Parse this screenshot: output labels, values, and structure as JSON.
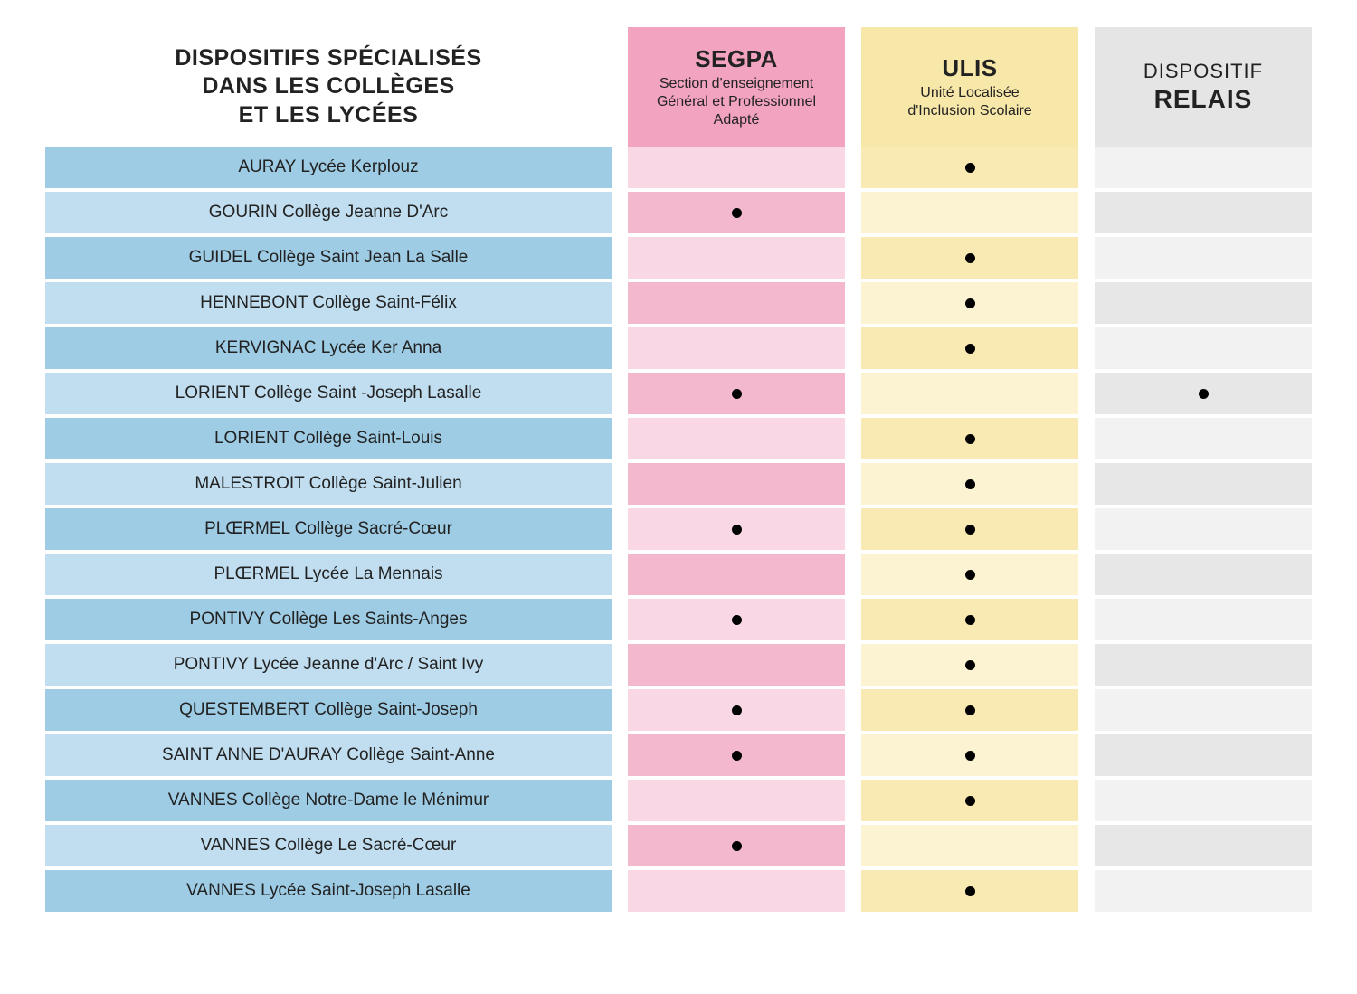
{
  "colors": {
    "header_main_bg": "#ffffff",
    "header_segpa_bg": "#f2a3bf",
    "header_ulis_bg": "#f7e7a8",
    "header_relais_bg": "#e5e5e5",
    "row_blue_dark": "#9ecce4",
    "row_blue_light": "#c1def0",
    "row_pink_dark": "#f4b8ce",
    "row_pink_light": "#fad7e4",
    "row_yellow_dark": "#f9eab3",
    "row_yellow_light": "#fcf3d2",
    "row_grey_dark": "#e7e7e7",
    "row_grey_light": "#f2f2f2"
  },
  "header": {
    "main": "DISPOSITIFS SPÉCIALISÉS\nDANS LES COLLÈGES\nET LES LYCÉES",
    "segpa_title": "SEGPA",
    "segpa_sub": "Section d'enseignement\nGénéral et Professionnel\nAdapté",
    "ulis_title": "ULIS",
    "ulis_sub": "Unité Localisée\nd'Inclusion Scolaire",
    "relais_title1": "DISPOSITIF",
    "relais_title2": "RELAIS"
  },
  "rows": [
    {
      "label": "AURAY Lycée Kerplouz",
      "segpa": false,
      "ulis": true,
      "relais": false
    },
    {
      "label": "GOURIN Collège Jeanne D'Arc",
      "segpa": true,
      "ulis": false,
      "relais": false
    },
    {
      "label": "GUIDEL Collège Saint Jean La Salle",
      "segpa": false,
      "ulis": true,
      "relais": false
    },
    {
      "label": "HENNEBONT Collège Saint-Félix",
      "segpa": false,
      "ulis": true,
      "relais": false
    },
    {
      "label": "KERVIGNAC Lycée Ker Anna",
      "segpa": false,
      "ulis": true,
      "relais": false
    },
    {
      "label": "LORIENT Collège Saint -Joseph Lasalle",
      "segpa": true,
      "ulis": false,
      "relais": true
    },
    {
      "label": "LORIENT Collège Saint-Louis",
      "segpa": false,
      "ulis": true,
      "relais": false
    },
    {
      "label": "MALESTROIT Collège Saint-Julien",
      "segpa": false,
      "ulis": true,
      "relais": false
    },
    {
      "label": "PLŒRMEL Collège Sacré-Cœur",
      "segpa": true,
      "ulis": true,
      "relais": false
    },
    {
      "label": "PLŒRMEL Lycée La Mennais",
      "segpa": false,
      "ulis": true,
      "relais": false
    },
    {
      "label": "PONTIVY Collège Les Saints-Anges",
      "segpa": true,
      "ulis": true,
      "relais": false
    },
    {
      "label": "PONTIVY Lycée Jeanne d'Arc / Saint Ivy",
      "segpa": false,
      "ulis": true,
      "relais": false
    },
    {
      "label": "QUESTEMBERT Collège Saint-Joseph",
      "segpa": true,
      "ulis": true,
      "relais": false
    },
    {
      "label": "SAINT ANNE D'AURAY Collège Saint-Anne",
      "segpa": true,
      "ulis": true,
      "relais": false
    },
    {
      "label": "VANNES Collège Notre-Dame le Ménimur",
      "segpa": false,
      "ulis": true,
      "relais": false
    },
    {
      "label": "VANNES Collège Le Sacré-Cœur",
      "segpa": true,
      "ulis": false,
      "relais": false
    },
    {
      "label": "VANNES Lycée Saint-Joseph Lasalle",
      "segpa": false,
      "ulis": true,
      "relais": false
    }
  ]
}
